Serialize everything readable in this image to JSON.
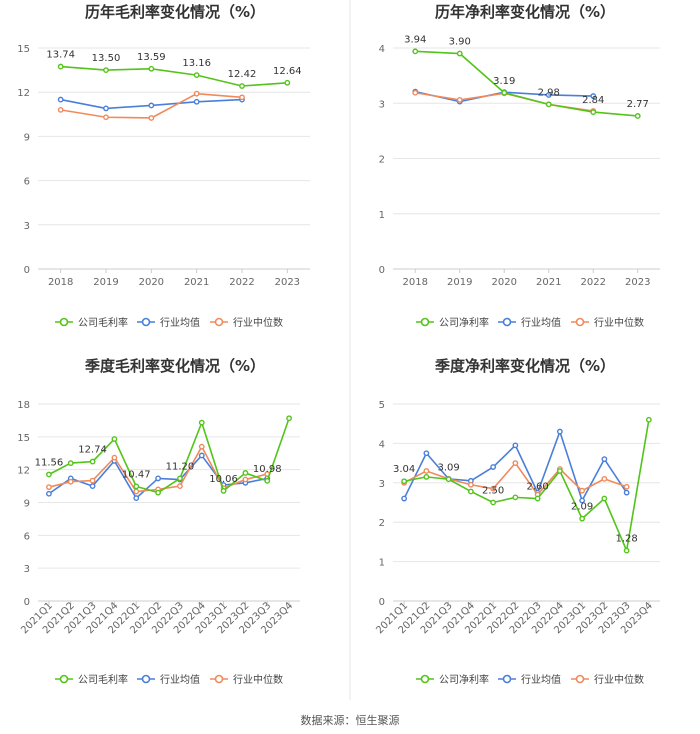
{
  "source_text": "数据来源：恒生聚源",
  "colors": {
    "company": "#52c41a",
    "industry_avg": "#4a7fd9",
    "industry_median": "#f08a5d",
    "grid": "#e6e6e6",
    "axis": "#cccccc",
    "divider": "#e6e6e6"
  },
  "legend_common": {
    "industry_avg": "行业均值",
    "industry_median": "行业中位数"
  },
  "chart_data": [
    {
      "id": "annual-gross",
      "type": "line",
      "title": "历年毛利率变化情况（%）",
      "categories": [
        "2018",
        "2019",
        "2020",
        "2021",
        "2022",
        "2023"
      ],
      "yticks": [
        "0",
        "3",
        "6",
        "9",
        "12",
        "15"
      ],
      "ylim": [
        0,
        15
      ],
      "rotate_labels": false,
      "series": [
        {
          "key": "company",
          "name": "公司毛利率",
          "values": [
            13.74,
            13.5,
            13.59,
            13.16,
            12.42,
            12.64
          ],
          "labels": [
            "13.74",
            "13.50",
            "13.59",
            "13.16",
            "12.42",
            "12.64"
          ]
        },
        {
          "key": "industry_avg",
          "name": "行业均值",
          "values": [
            11.5,
            10.9,
            11.1,
            11.35,
            11.5,
            null
          ]
        },
        {
          "key": "industry_median",
          "name": "行业中位数",
          "values": [
            10.8,
            10.3,
            10.25,
            11.9,
            11.65,
            null
          ]
        }
      ]
    },
    {
      "id": "annual-net",
      "type": "line",
      "title": "历年净利率变化情况（%）",
      "categories": [
        "2018",
        "2019",
        "2020",
        "2021",
        "2022",
        "2023"
      ],
      "yticks": [
        "0",
        "1",
        "2",
        "3",
        "4"
      ],
      "ylim": [
        0,
        4
      ],
      "rotate_labels": false,
      "series": [
        {
          "key": "company",
          "name": "公司净利率",
          "values": [
            3.94,
            3.9,
            3.19,
            2.98,
            2.84,
            2.77
          ],
          "labels": [
            "3.94",
            "3.90",
            "3.19",
            "2.98",
            "2.84",
            "2.77"
          ]
        },
        {
          "key": "industry_avg",
          "name": "行业均值",
          "values": [
            3.21,
            3.03,
            3.2,
            3.15,
            3.13,
            null
          ]
        },
        {
          "key": "industry_median",
          "name": "行业中位数",
          "values": [
            3.19,
            3.06,
            3.18,
            2.98,
            2.86,
            null
          ]
        }
      ]
    },
    {
      "id": "quarterly-gross",
      "type": "line",
      "title": "季度毛利率变化情况（%）",
      "categories": [
        "2021Q1",
        "2021Q2",
        "2021Q3",
        "2021Q4",
        "2022Q1",
        "2022Q2",
        "2022Q3",
        "2022Q4",
        "2023Q1",
        "2023Q2",
        "2023Q3",
        "2023Q4"
      ],
      "yticks": [
        "0",
        "3",
        "6",
        "9",
        "12",
        "15",
        "18"
      ],
      "ylim": [
        0,
        18
      ],
      "rotate_labels": true,
      "series": [
        {
          "key": "company",
          "name": "公司毛利率",
          "values": [
            11.56,
            12.6,
            12.74,
            14.8,
            10.47,
            9.9,
            11.2,
            16.3,
            10.06,
            11.7,
            10.98,
            16.7
          ],
          "labels": [
            "11.56",
            "",
            "12.74",
            "",
            "10.47",
            "",
            "11.20",
            "",
            "10.06",
            "",
            "10.98",
            ""
          ]
        },
        {
          "key": "industry_avg",
          "name": "行业均值",
          "values": [
            9.8,
            11.2,
            10.5,
            12.8,
            9.4,
            11.2,
            11.1,
            13.3,
            10.6,
            10.8,
            11.2,
            null
          ]
        },
        {
          "key": "industry_median",
          "name": "行业中位数",
          "values": [
            10.4,
            10.9,
            11.0,
            13.1,
            10.0,
            10.2,
            10.5,
            14.1,
            10.3,
            11.1,
            11.6,
            null
          ]
        }
      ]
    },
    {
      "id": "quarterly-net",
      "type": "line",
      "title": "季度净利率变化情况（%）",
      "categories": [
        "2021Q1",
        "2021Q2",
        "2021Q3",
        "2021Q4",
        "2022Q1",
        "2022Q2",
        "2022Q3",
        "2022Q4",
        "2023Q1",
        "2023Q2",
        "2023Q3",
        "2023Q4"
      ],
      "yticks": [
        "0",
        "1",
        "2",
        "3",
        "4",
        "5"
      ],
      "ylim": [
        0,
        5
      ],
      "rotate_labels": true,
      "series": [
        {
          "key": "company",
          "name": "公司净利率",
          "values": [
            3.04,
            3.15,
            3.09,
            2.78,
            2.5,
            2.63,
            2.6,
            3.3,
            2.09,
            2.6,
            1.28,
            4.6
          ],
          "labels": [
            "3.04",
            "",
            "3.09",
            "",
            "2.50",
            "",
            "2.60",
            "",
            "2.09",
            "",
            "1.28",
            ""
          ]
        },
        {
          "key": "industry_avg",
          "name": "行业均值",
          "values": [
            2.6,
            3.75,
            3.1,
            3.05,
            3.4,
            3.95,
            2.75,
            4.3,
            2.55,
            3.6,
            2.75,
            null
          ]
        },
        {
          "key": "industry_median",
          "name": "行业中位数",
          "values": [
            3.0,
            3.3,
            3.1,
            2.95,
            2.85,
            3.5,
            2.7,
            3.35,
            2.8,
            3.1,
            2.9,
            null
          ]
        }
      ]
    }
  ]
}
